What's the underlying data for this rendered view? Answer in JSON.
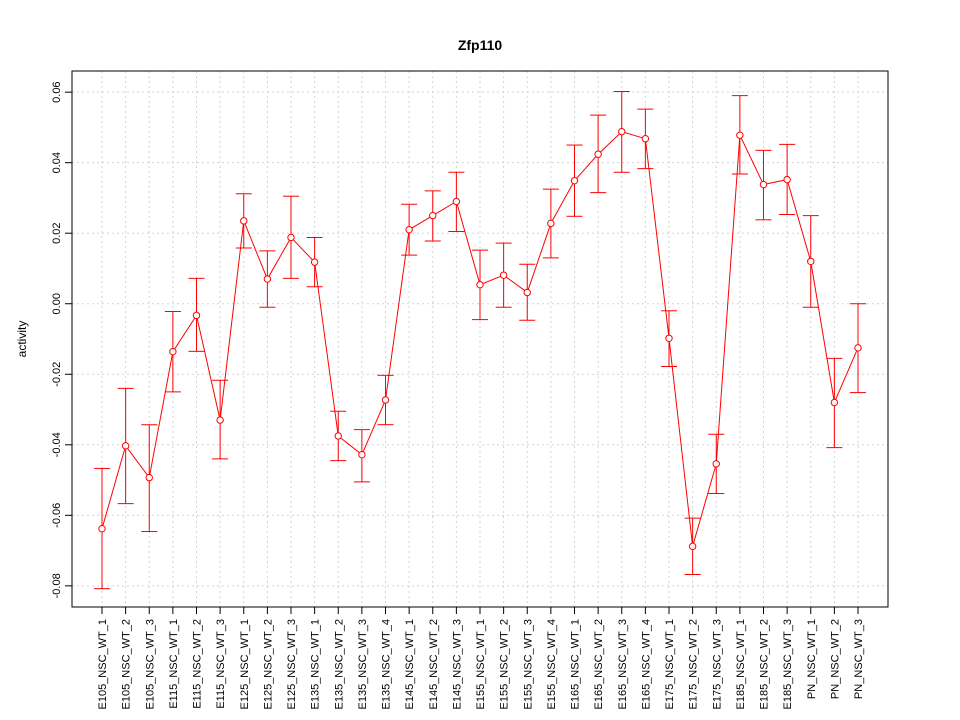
{
  "chart_data": {
    "type": "line",
    "title": "Zfp110",
    "xlabel": "",
    "ylabel": "activity",
    "ylim": [
      -0.086,
      0.066
    ],
    "yticks": [
      -0.08,
      -0.06,
      -0.04,
      -0.02,
      0.0,
      0.02,
      0.04,
      0.06
    ],
    "ytick_labels": [
      "-0.08",
      "-0.06",
      "-0.04",
      "-0.02",
      "0.00",
      "0.02",
      "0.04",
      "0.06"
    ],
    "grid": true,
    "colors": {
      "series": "#ff0000",
      "grid": "#d3d3d3"
    },
    "categories": [
      "E105_NSC_WT_1",
      "E105_NSC_WT_2",
      "E105_NSC_WT_3",
      "E115_NSC_WT_1",
      "E115_NSC_WT_2",
      "E115_NSC_WT_3",
      "E125_NSC_WT_1",
      "E125_NSC_WT_2",
      "E125_NSC_WT_3",
      "E135_NSC_WT_1",
      "E135_NSC_WT_2",
      "E135_NSC_WT_3",
      "E135_NSC_WT_4",
      "E145_NSC_WT_1",
      "E145_NSC_WT_2",
      "E145_NSC_WT_3",
      "E155_NSC_WT_1",
      "E155_NSC_WT_2",
      "E155_NSC_WT_3",
      "E155_NSC_WT_4",
      "E165_NSC_WT_1",
      "E165_NSC_WT_2",
      "E165_NSC_WT_3",
      "E165_NSC_WT_4",
      "E175_NSC_WT_1",
      "E175_NSC_WT_2",
      "E175_NSC_WT_3",
      "E185_NSC_WT_1",
      "E185_NSC_WT_2",
      "E185_NSC_WT_3",
      "PN_NSC_WT_1",
      "PN_NSC_WT_2",
      "PN_NSC_WT_3"
    ],
    "series": [
      {
        "values": [
          -0.0638,
          -0.0403,
          -0.0493,
          -0.0136,
          -0.0033,
          -0.033,
          0.0235,
          0.007,
          0.0188,
          0.0118,
          -0.0375,
          -0.0428,
          -0.0273,
          0.021,
          0.025,
          0.029,
          0.0054,
          0.0081,
          0.0032,
          0.0228,
          0.0349,
          0.0424,
          0.0488,
          0.0468,
          -0.0098,
          -0.0688,
          -0.0454,
          0.0478,
          0.0338,
          0.0352,
          0.012,
          -0.028,
          -0.0125
        ],
        "lower": [
          -0.0808,
          -0.0567,
          -0.0646,
          -0.025,
          -0.0135,
          -0.044,
          0.0158,
          -0.001,
          0.0072,
          0.0048,
          -0.0445,
          -0.0505,
          -0.0343,
          0.0138,
          0.0178,
          0.0205,
          -0.0045,
          -0.001,
          -0.0047,
          0.013,
          0.0248,
          0.0315,
          0.0373,
          0.0383,
          -0.0178,
          -0.0768,
          -0.0538,
          0.0368,
          0.0238,
          0.0253,
          -0.001,
          -0.0408,
          -0.0252
        ],
        "upper": [
          -0.0467,
          -0.024,
          -0.0343,
          -0.0022,
          0.0072,
          -0.0217,
          0.0312,
          0.015,
          0.0305,
          0.0188,
          -0.0305,
          -0.0357,
          -0.0203,
          0.0282,
          0.032,
          0.0373,
          0.0152,
          0.0172,
          0.0112,
          0.0325,
          0.045,
          0.0535,
          0.0602,
          0.0552,
          -0.002,
          -0.0608,
          -0.037,
          0.059,
          0.0435,
          0.0452,
          0.025,
          -0.0155,
          0.0
        ]
      }
    ]
  }
}
